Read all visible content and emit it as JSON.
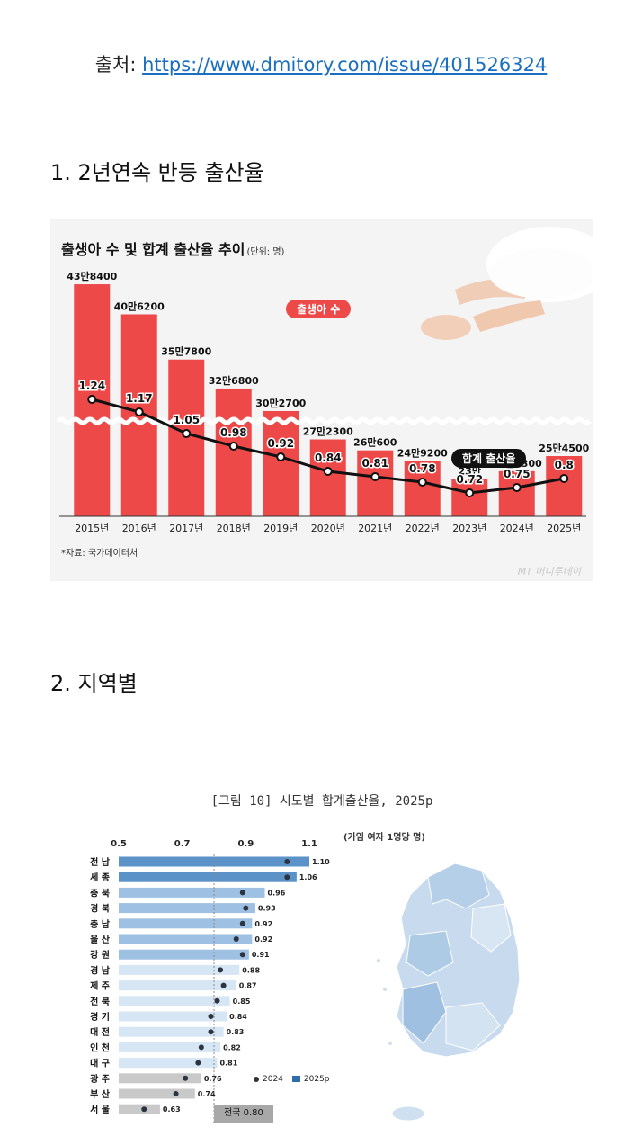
{
  "source": {
    "label": "출처:",
    "url": "https://www.dmitory.com/issue/401526324"
  },
  "section1": {
    "heading": "1. 2년연속 반등 출산율"
  },
  "section2": {
    "heading": "2. 지역별"
  },
  "chart1": {
    "title": "출생아 수 및 합계 출산율 추이",
    "unit": "(단위: 명)",
    "births_label": "출생아 수",
    "tfr_label": "합계 출산율",
    "source_note": "*자료: 국가데이터처",
    "logo": "MT 머니투데이"
  },
  "chart2": {
    "title": "[그림 10] 시도별 합계출산율, 2025p",
    "unit": "(가임 여자 1명당 명)",
    "national": "전국 0.80",
    "legend_2024": "2024",
    "legend_2025": "2025p"
  },
  "colors": {
    "bar": "#ee4949",
    "line": "#111111",
    "blue_dark": "#5b92c8",
    "blue_light": "#b9d3ea",
    "gray_bar": "#c9c9c9"
  },
  "chart_data": [
    {
      "type": "bar",
      "title": "출생아 수 및 합계 출산율 추이",
      "categories": [
        "2015년",
        "2016년",
        "2017년",
        "2018년",
        "2019년",
        "2020년",
        "2021년",
        "2022년",
        "2023년",
        "2024년",
        "2025년"
      ],
      "series": [
        {
          "name": "출생아 수",
          "type": "bar",
          "values": [
            438400,
            406200,
            357800,
            326800,
            302700,
            272300,
            260600,
            249200,
            230000,
            238300,
            254500
          ],
          "labels": [
            "43만8400",
            "40만6200",
            "35만7800",
            "32만6800",
            "30만2700",
            "27만2300",
            "26만600",
            "24만9200",
            "23만",
            "23만8300",
            "25만4500"
          ]
        },
        {
          "name": "합계 출산율",
          "type": "line",
          "values": [
            1.24,
            1.17,
            1.05,
            0.98,
            0.92,
            0.84,
            0.81,
            0.78,
            0.72,
            0.75,
            0.8
          ],
          "labels": [
            "1.24",
            "1.17",
            "1.05",
            "0.98",
            "0.92",
            "0.84",
            "0.81",
            "0.78",
            "0.72",
            "0.75",
            "0.8"
          ]
        }
      ]
    },
    {
      "type": "bar",
      "title": "[그림 10] 시도별 합계출산율, 2025p",
      "orientation": "horizontal",
      "xlim": [
        0.5,
        1.1
      ],
      "xticks": [
        "0.5",
        "0.7",
        "0.9",
        "1.1"
      ],
      "categories": [
        "전 남",
        "세 종",
        "충 북",
        "경 북",
        "충 남",
        "울 산",
        "강 원",
        "경 남",
        "제 주",
        "전 북",
        "경 기",
        "대 전",
        "인 천",
        "대 구",
        "광 주",
        "부 산",
        "서 울"
      ],
      "series": [
        {
          "name": "2025p",
          "values": [
            1.1,
            1.06,
            0.96,
            0.93,
            0.92,
            0.92,
            0.91,
            0.88,
            0.87,
            0.85,
            0.84,
            0.83,
            0.82,
            0.81,
            0.76,
            0.74,
            0.63
          ],
          "labels": [
            "1.10",
            "1.06",
            "0.96",
            "0.93",
            "0.92",
            "0.92",
            "0.91",
            "0.88",
            "0.87",
            "0.85",
            "0.84",
            "0.83",
            "0.82",
            "0.81",
            "0.76",
            "0.74",
            "0.63"
          ]
        },
        {
          "name": "2024",
          "values": [
            1.03,
            1.03,
            0.89,
            0.9,
            0.89,
            0.87,
            0.89,
            0.82,
            0.83,
            0.81,
            0.79,
            0.79,
            0.76,
            0.75,
            0.71,
            0.68,
            0.58
          ]
        }
      ],
      "reference": {
        "label": "전국",
        "value": 0.8
      }
    }
  ]
}
